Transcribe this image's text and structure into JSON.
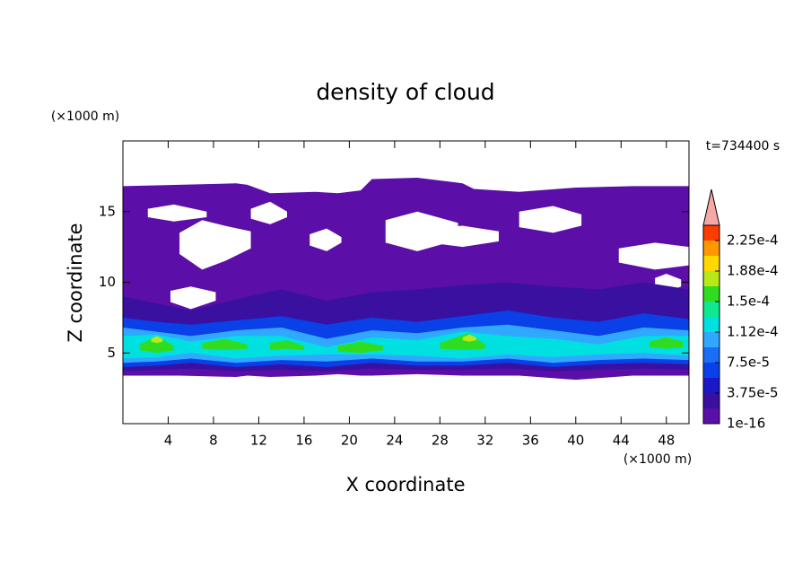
{
  "chart_data": {
    "type": "contour",
    "title": "density of cloud",
    "xlabel": "X coordinate",
    "ylabel": "Z coordinate",
    "xunit": "(×1000 m)",
    "yunit": "(×1000 m)",
    "time_label": "t=734400 s",
    "xlim": [
      0,
      50
    ],
    "ylim": [
      0,
      20
    ],
    "xticks": [
      4,
      8,
      12,
      16,
      20,
      24,
      28,
      32,
      36,
      40,
      44,
      48
    ],
    "yticks": [
      5,
      10,
      15
    ],
    "colors": [
      "#5c0fa8",
      "#3a10a0",
      "#1c18c8",
      "#0a40e8",
      "#1a6ef5",
      "#30a8ff",
      "#00e0e0",
      "#10e890",
      "#30dc20",
      "#b8e818",
      "#ffd800",
      "#ff9800",
      "#ff3c00"
    ],
    "extend_color": "#f4a8a8",
    "colorbar_ticks": [
      {
        "value": 1e-16,
        "label": "1e-16"
      },
      {
        "value": 3.75e-05,
        "label": "3.75e-5"
      },
      {
        "value": 7.5e-05,
        "label": "7.5e-5"
      },
      {
        "value": 0.0001125,
        "label": "1.12e-4"
      },
      {
        "value": 0.00015,
        "label": "1.5e-4"
      },
      {
        "value": 0.0001875,
        "label": "1.88e-4"
      },
      {
        "value": 0.000225,
        "label": "2.25e-4"
      }
    ],
    "layers": [
      {
        "level": 0,
        "x": [
          0,
          5,
          10,
          11,
          13,
          17,
          19,
          21,
          22,
          26,
          30,
          31,
          35,
          40,
          45,
          50
        ],
        "top": [
          16.8,
          16.9,
          17,
          16.9,
          16.3,
          16.4,
          16.3,
          16.5,
          17.3,
          17.4,
          17.0,
          16.6,
          16.4,
          16.7,
          16.8,
          16.8
        ],
        "bottom": [
          3.4,
          3.4,
          3.3,
          3.4,
          3.3,
          3.4,
          3.5,
          3.4,
          3.4,
          3.5,
          3.4,
          3.4,
          3.4,
          3.1,
          3.4,
          3.4
        ]
      },
      {
        "level": null,
        "x": [
          2.2,
          4.5,
          7.4
        ],
        "top": [
          15.2,
          15.5,
          15.0
        ],
        "bottom": [
          14.6,
          14.3,
          14.6
        ]
      },
      {
        "level": null,
        "x": [
          11.3,
          13,
          14.5
        ],
        "top": [
          15.2,
          15.7,
          15.0
        ],
        "bottom": [
          14.5,
          14.1,
          14.6
        ]
      },
      {
        "level": null,
        "x": [
          5,
          7,
          9,
          11.3
        ],
        "top": [
          13.5,
          14.4,
          14.0,
          13.6
        ],
        "bottom": [
          12.0,
          10.9,
          11.5,
          12.4
        ]
      },
      {
        "level": null,
        "x": [
          4.2,
          6,
          8.2
        ],
        "top": [
          9.4,
          9.7,
          9.3
        ],
        "bottom": [
          8.6,
          8.1,
          8.7
        ]
      },
      {
        "level": null,
        "x": [
          16.5,
          18,
          19.3
        ],
        "top": [
          13.4,
          13.8,
          13.2
        ],
        "bottom": [
          12.6,
          12.2,
          12.8
        ]
      },
      {
        "level": null,
        "x": [
          23.2,
          26,
          29.6
        ],
        "top": [
          14.4,
          15.0,
          14.2
        ],
        "bottom": [
          12.8,
          12.2,
          13.0
        ]
      },
      {
        "level": null,
        "x": [
          27,
          30,
          33.2
        ],
        "top": [
          13.8,
          14.0,
          13.6
        ],
        "bottom": [
          12.8,
          12.5,
          12.9
        ]
      },
      {
        "level": null,
        "x": [
          35,
          38,
          40.5
        ],
        "top": [
          15.0,
          15.4,
          14.8
        ],
        "bottom": [
          13.9,
          13.5,
          14.0
        ]
      },
      {
        "level": null,
        "x": [
          43.8,
          47,
          50
        ],
        "top": [
          12.4,
          12.8,
          12.5
        ],
        "bottom": [
          11.4,
          10.9,
          11.2
        ]
      },
      {
        "level": null,
        "x": [
          47,
          48,
          49.3
        ],
        "top": [
          10.3,
          10.6,
          10.2
        ],
        "bottom": [
          9.6,
          9.3,
          9.7
        ]
      },
      {
        "level": 1,
        "x": [
          0,
          3,
          6,
          10,
          14,
          18,
          22,
          26,
          30,
          34,
          38,
          42,
          46,
          50
        ],
        "top": [
          9,
          8.5,
          8.0,
          8.8,
          9.5,
          8.7,
          9.3,
          9.5,
          9.8,
          10,
          9.7,
          9.5,
          10,
          9.5
        ],
        "bottom": [
          3.7,
          3.8,
          3.9,
          3.7,
          3.8,
          3.7,
          3.9,
          3.8,
          3.8,
          3.9,
          3.7,
          3.8,
          3.9,
          3.8
        ]
      },
      {
        "level": 3,
        "x": [
          0,
          3,
          6,
          10,
          14,
          18,
          22,
          26,
          30,
          34,
          38,
          42,
          46,
          50
        ],
        "top": [
          7.5,
          7.2,
          7,
          7.3,
          7.6,
          7.0,
          7.5,
          7.2,
          7.6,
          8,
          7.5,
          7.2,
          7.8,
          7.4
        ],
        "bottom": [
          4.0,
          4.1,
          4.3,
          4.0,
          4.2,
          4.0,
          4.3,
          4.1,
          4.1,
          4.3,
          4.0,
          4.2,
          4.3,
          4.2
        ]
      },
      {
        "level": 5,
        "x": [
          0,
          3,
          6,
          10,
          14,
          18,
          22,
          26,
          30,
          34,
          38,
          42,
          46,
          50
        ],
        "top": [
          6.8,
          6.5,
          6.2,
          6.6,
          6.8,
          6.0,
          6.6,
          6.4,
          6.8,
          7.0,
          6.6,
          6.2,
          6.8,
          6.6
        ],
        "bottom": [
          4.3,
          4.4,
          4.6,
          4.3,
          4.5,
          4.4,
          4.6,
          4.4,
          4.4,
          4.6,
          4.3,
          4.5,
          4.6,
          4.5
        ]
      },
      {
        "level": 6,
        "x": [
          0,
          3,
          6,
          10,
          14,
          18,
          22,
          26,
          30,
          34,
          38,
          42,
          46,
          50
        ],
        "top": [
          6.2,
          6.3,
          5.8,
          6.2,
          6.2,
          5.4,
          6.1,
          5.9,
          6.5,
          6.2,
          6.0,
          5.6,
          6.2,
          6.2
        ],
        "bottom": [
          4.6,
          4.7,
          5.0,
          4.6,
          4.8,
          4.9,
          4.9,
          4.8,
          4.6,
          4.9,
          4.7,
          4.9,
          5.0,
          4.8
        ]
      },
      {
        "level": 8,
        "x": [
          1.5,
          3,
          4.5
        ],
        "top": [
          5.6,
          6.2,
          5.5
        ],
        "bottom": [
          5.2,
          5.0,
          5.2
        ]
      },
      {
        "level": 8,
        "x": [
          7,
          9,
          11
        ],
        "top": [
          5.7,
          6.0,
          5.6
        ],
        "bottom": [
          5.3,
          5.2,
          5.3
        ]
      },
      {
        "level": 8,
        "x": [
          13,
          14.5,
          16
        ],
        "top": [
          5.7,
          5.9,
          5.5
        ],
        "bottom": [
          5.2,
          5.3,
          5.2
        ]
      },
      {
        "level": 8,
        "x": [
          19,
          21,
          23
        ],
        "top": [
          5.5,
          5.8,
          5.5
        ],
        "bottom": [
          5.1,
          5.0,
          5.2
        ]
      },
      {
        "level": 8,
        "x": [
          28,
          30.5,
          32
        ],
        "top": [
          5.7,
          6.4,
          5.6
        ],
        "bottom": [
          5.3,
          5.2,
          5.3
        ]
      },
      {
        "level": 8,
        "x": [
          46.5,
          48,
          49.5
        ],
        "top": [
          5.8,
          6.1,
          5.8
        ],
        "bottom": [
          5.4,
          5.3,
          5.4
        ]
      },
      {
        "level": 9,
        "x": [
          2.5,
          3,
          3.5
        ],
        "top": [
          6,
          6.2,
          6
        ],
        "bottom": [
          5.8,
          5.7,
          5.8
        ]
      },
      {
        "level": 9,
        "x": [
          30,
          30.6,
          31.2
        ],
        "top": [
          6.1,
          6.3,
          6.1
        ],
        "bottom": [
          5.9,
          5.8,
          5.9
        ]
      }
    ]
  }
}
